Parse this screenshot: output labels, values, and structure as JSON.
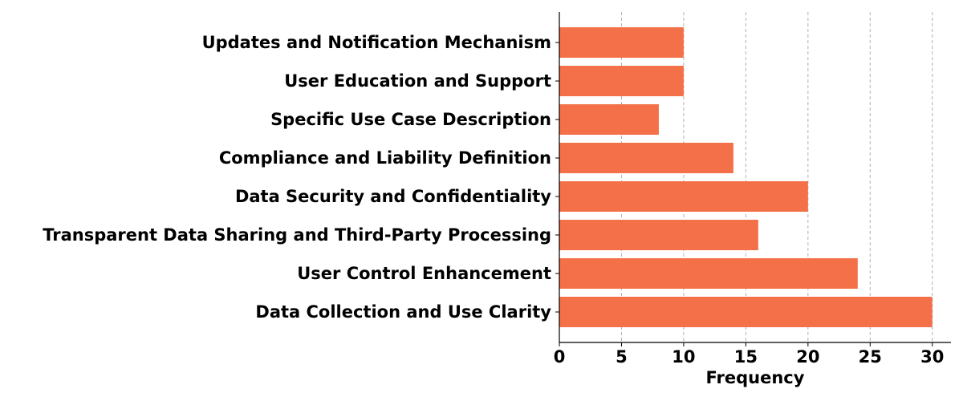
{
  "chart_data": {
    "type": "bar",
    "orientation": "horizontal",
    "categories": [
      "Data Collection and Use Clarity",
      "User Control Enhancement",
      "Transparent Data Sharing and Third-Party Processing",
      "Data Security and Confidentiality",
      "Compliance and Liability Definition",
      "Specific Use Case Description",
      "User Education and Support",
      "Updates and Notification Mechanism"
    ],
    "values": [
      30,
      24,
      16,
      20,
      14,
      8,
      10,
      10
    ],
    "xlabel": "Frequency",
    "ylabel": "",
    "xlim": [
      0,
      31.5
    ],
    "xticks": [
      0,
      5,
      10,
      15,
      20,
      25,
      30
    ],
    "grid": "x-dashed",
    "bar_color": "#f37048",
    "grid_color": "#b0b0b0"
  }
}
